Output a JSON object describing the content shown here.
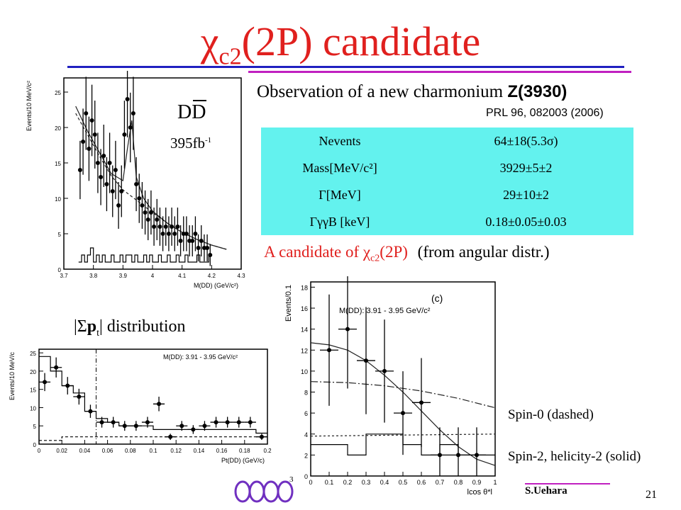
{
  "title": {
    "main": "χ",
    "sub": "c2",
    "rest": "(2P) candidate"
  },
  "observation": {
    "text": "Observation of a new charmonium ",
    "state": "Z(3930)",
    "reference": "PRL 96, 082003 (2006)"
  },
  "dd_label": "DD",
  "luminosity": {
    "value": "395fb",
    "exp": "-1"
  },
  "table": [
    {
      "key": "Nevents",
      "value": "64±18(5.3σ)"
    },
    {
      "key": "Mass[MeV/c²]",
      "value": "3929±5±2"
    },
    {
      "key": "Γ[MeV]",
      "value": "29±10±2"
    },
    {
      "key": "ΓγγB [keV]",
      "value": "0.18±0.05±0.03"
    }
  ],
  "candidate": {
    "red_text": "A candidate of χ",
    "red_sub": "c2",
    "red_end": "(2P)",
    "black_text": "(from angular distr.)"
  },
  "pt_label": {
    "pre": "|Σ",
    "bold": "p",
    "sub": "t",
    "post": "| distribution"
  },
  "spin0": "Spin-0 (dashed)",
  "spin2": "Spin-2, helicity-2 (solid)",
  "footer": {
    "author": "S.Uehara",
    "page": "21",
    "logo_num": "3"
  },
  "colors": {
    "title": "#e0201e",
    "rule_blue": "#2020c0",
    "rule_magenta": "#c020c0",
    "table_bg": "#63f2ee"
  },
  "chart_data": [
    {
      "type": "scatter",
      "ylabel": "Events/10 MeV/c²",
      "xlabel": "M(DD) (GeV/c²)",
      "xticks": [
        "3.7",
        "3.8",
        "3.9",
        "4",
        "4.1",
        "4.2",
        "4.3"
      ],
      "yticks": [
        "0",
        "5",
        "10",
        "15",
        "20",
        "25"
      ],
      "xlim": [
        3.7,
        4.3
      ],
      "ylim": [
        0,
        27
      ],
      "points": [
        [
          3.755,
          14
        ],
        [
          3.765,
          18
        ],
        [
          3.775,
          22
        ],
        [
          3.785,
          17
        ],
        [
          3.795,
          21
        ],
        [
          3.805,
          19
        ],
        [
          3.815,
          15
        ],
        [
          3.825,
          13
        ],
        [
          3.835,
          16
        ],
        [
          3.845,
          12
        ],
        [
          3.855,
          15
        ],
        [
          3.865,
          11
        ],
        [
          3.875,
          14
        ],
        [
          3.885,
          9
        ],
        [
          3.895,
          11
        ],
        [
          3.905,
          19
        ],
        [
          3.915,
          24
        ],
        [
          3.925,
          20
        ],
        [
          3.935,
          22
        ],
        [
          3.945,
          12
        ],
        [
          3.955,
          10
        ],
        [
          3.965,
          9
        ],
        [
          3.975,
          8
        ],
        [
          3.985,
          7
        ],
        [
          3.995,
          8
        ],
        [
          4.005,
          6
        ],
        [
          4.015,
          7
        ],
        [
          4.025,
          6
        ],
        [
          4.035,
          5
        ],
        [
          4.045,
          6
        ],
        [
          4.055,
          5
        ],
        [
          4.065,
          6
        ],
        [
          4.075,
          5
        ],
        [
          4.085,
          6
        ],
        [
          4.095,
          4
        ],
        [
          4.105,
          5
        ],
        [
          4.115,
          5
        ],
        [
          4.125,
          4
        ],
        [
          4.135,
          4
        ],
        [
          4.145,
          5
        ],
        [
          4.155,
          3
        ],
        [
          4.165,
          4
        ],
        [
          4.175,
          3
        ],
        [
          4.185,
          3
        ],
        [
          4.195,
          2
        ]
      ],
      "fit_solid": [
        [
          3.74,
          23
        ],
        [
          3.78,
          19.5
        ],
        [
          3.82,
          16.5
        ],
        [
          3.86,
          13.5
        ],
        [
          3.9,
          12.5
        ],
        [
          3.915,
          17
        ],
        [
          3.93,
          21
        ],
        [
          3.945,
          13
        ],
        [
          3.97,
          10
        ],
        [
          4.0,
          8.2
        ],
        [
          4.05,
          6.5
        ],
        [
          4.1,
          5.2
        ],
        [
          4.15,
          4.2
        ],
        [
          4.2,
          3.4
        ],
        [
          4.25,
          2.8
        ]
      ],
      "fit_dashed": [
        [
          3.74,
          22
        ],
        [
          3.78,
          19
        ],
        [
          3.82,
          16
        ],
        [
          3.86,
          13.2
        ],
        [
          3.9,
          11.2
        ],
        [
          3.95,
          9.6
        ],
        [
          4.0,
          8
        ],
        [
          4.05,
          6.5
        ],
        [
          4.1,
          5.2
        ],
        [
          4.15,
          4.2
        ],
        [
          4.2,
          3.4
        ],
        [
          4.25,
          2.8
        ]
      ]
    },
    {
      "type": "scatter",
      "ylabel": "Events/10 MeV/c",
      "xlabel": "Pt(DD) (GeV/c)",
      "annotation": "M(DD): 3.91 - 3.95 GeV/c²",
      "xticks": [
        "0",
        "0.02",
        "0.04",
        "0.06",
        "0.08",
        "0.1",
        "0.12",
        "0.14",
        "0.16",
        "0.18",
        "0.2"
      ],
      "yticks": [
        "0",
        "5",
        "10",
        "15",
        "20",
        "25"
      ],
      "xlim": [
        0,
        0.2
      ],
      "ylim": [
        0,
        26
      ],
      "points": [
        [
          0.005,
          17
        ],
        [
          0.015,
          21
        ],
        [
          0.025,
          16
        ],
        [
          0.035,
          13
        ],
        [
          0.045,
          9
        ],
        [
          0.055,
          6
        ],
        [
          0.065,
          6
        ],
        [
          0.075,
          5
        ],
        [
          0.085,
          5
        ],
        [
          0.095,
          6
        ],
        [
          0.105,
          11
        ],
        [
          0.115,
          2
        ],
        [
          0.125,
          5
        ],
        [
          0.135,
          4
        ],
        [
          0.145,
          5
        ],
        [
          0.155,
          6
        ],
        [
          0.165,
          6
        ],
        [
          0.175,
          6
        ],
        [
          0.185,
          6
        ],
        [
          0.195,
          2
        ]
      ],
      "hist_solid": [
        24,
        20,
        16,
        14,
        9,
        7,
        6,
        5,
        5,
        5,
        4,
        4,
        4,
        4,
        4,
        4,
        4,
        4,
        4,
        3
      ],
      "cut_x": 0.05
    },
    {
      "type": "scatter",
      "ylabel": "Events/0.1",
      "xlabel": "lcos θ*l",
      "panel": "(c)",
      "annotation": "M(DD): 3.91 - 3.95 GeV/c²",
      "xticks": [
        "0",
        "0.1",
        "0.2",
        "0.3",
        "0.4",
        "0.5",
        "0.6",
        "0.7",
        "0.8",
        "0.9",
        "1"
      ],
      "yticks": [
        "0",
        "2",
        "4",
        "6",
        "8",
        "10",
        "12",
        "14",
        "16",
        "18"
      ],
      "xlim": [
        0,
        1
      ],
      "ylim": [
        0,
        18.5
      ],
      "points": [
        [
          0.1,
          12
        ],
        [
          0.2,
          14
        ],
        [
          0.3,
          11
        ],
        [
          0.4,
          10
        ],
        [
          0.5,
          6
        ],
        [
          0.6,
          7
        ],
        [
          0.7,
          2
        ],
        [
          0.8,
          2
        ],
        [
          0.9,
          2
        ]
      ],
      "hist": [
        3,
        3,
        2,
        4,
        4,
        3,
        2,
        3,
        2,
        2
      ],
      "spin2_curve": [
        [
          0,
          12.7
        ],
        [
          0.1,
          12.5
        ],
        [
          0.2,
          12
        ],
        [
          0.3,
          11
        ],
        [
          0.4,
          9.6
        ],
        [
          0.5,
          8
        ],
        [
          0.6,
          6.2
        ],
        [
          0.7,
          4.4
        ],
        [
          0.8,
          2.8
        ],
        [
          0.9,
          1.6
        ],
        [
          1,
          1
        ]
      ],
      "spin0_curve": [
        [
          0,
          9
        ],
        [
          0.2,
          8.9
        ],
        [
          0.4,
          8.6
        ],
        [
          0.6,
          8.1
        ],
        [
          0.8,
          7.4
        ],
        [
          1,
          6.5
        ]
      ],
      "dashed_flat": [
        [
          0,
          3.8
        ],
        [
          0.5,
          3.9
        ],
        [
          1,
          4.0
        ]
      ]
    }
  ]
}
